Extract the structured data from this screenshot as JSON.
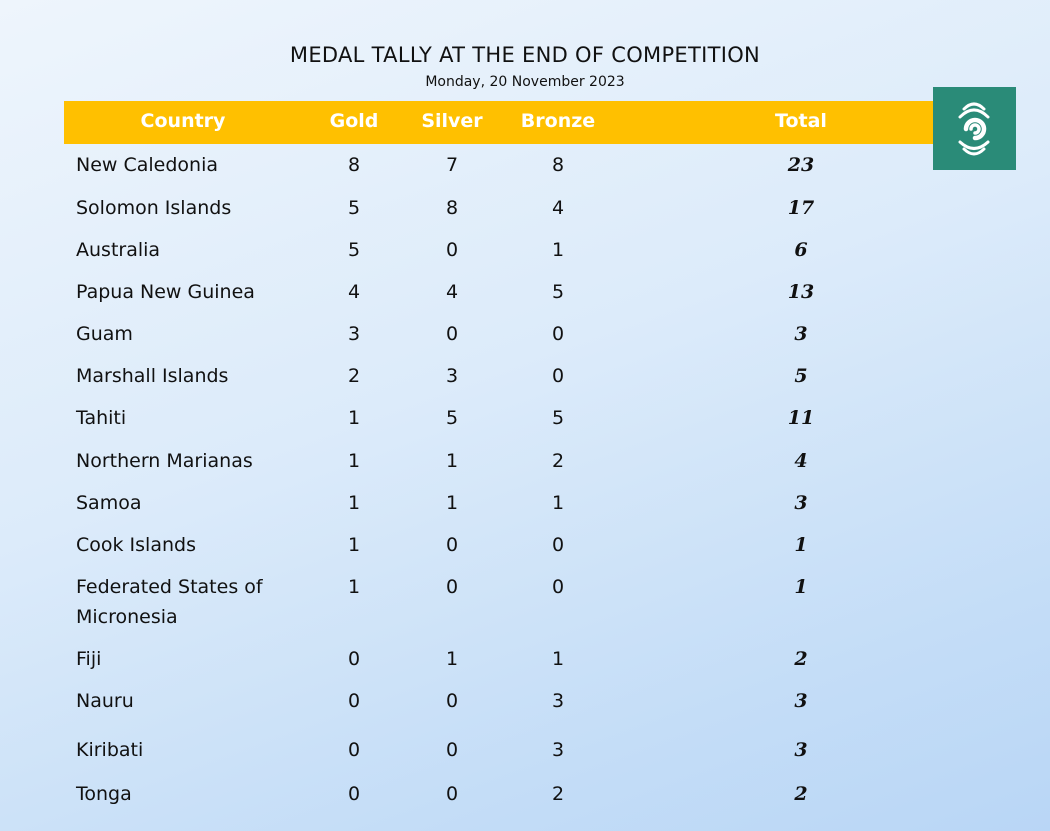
{
  "title": "MEDAL TALLY AT THE END OF COMPETITION",
  "subtitle": "Monday, 20 November 2023",
  "header": {
    "country": "Country",
    "gold": "Gold",
    "silver": "Silver",
    "bronze": "Bronze",
    "total": "Total"
  },
  "logo": {
    "icon": "rnz-swirl-icon",
    "color": "#2a8b78"
  },
  "colors": {
    "header": "#ffc000",
    "header_text": "#ffffff"
  },
  "rows": [
    {
      "country": "New Caledonia",
      "gold": "8",
      "silver": "7",
      "bronze": "8",
      "total": "23"
    },
    {
      "country": "Solomon Islands",
      "gold": "5",
      "silver": "8",
      "bronze": "4",
      "total": "17"
    },
    {
      "country": "Australia",
      "gold": "5",
      "silver": "0",
      "bronze": "1",
      "total": "6"
    },
    {
      "country": "Papua New Guinea",
      "gold": "4",
      "silver": "4",
      "bronze": "5",
      "total": "13"
    },
    {
      "country": "Guam",
      "gold": "3",
      "silver": "0",
      "bronze": "0",
      "total": "3"
    },
    {
      "country": "Marshall Islands",
      "gold": "2",
      "silver": "3",
      "bronze": "0",
      "total": "5"
    },
    {
      "country": "Tahiti",
      "gold": "1",
      "silver": "5",
      "bronze": "5",
      "total": "11"
    },
    {
      "country": "Northern Marianas",
      "gold": "1",
      "silver": "1",
      "bronze": "2",
      "total": "4"
    },
    {
      "country": "Samoa",
      "gold": "1",
      "silver": "1",
      "bronze": "1",
      "total": "3"
    },
    {
      "country": "Cook Islands",
      "gold": "1",
      "silver": "0",
      "bronze": "0",
      "total": "1"
    },
    {
      "country": "Federated States of Micronesia",
      "gold": "1",
      "silver": "0",
      "bronze": "0",
      "total": "1"
    },
    {
      "country": "Fiji",
      "gold": "0",
      "silver": "1",
      "bronze": "1",
      "total": "2"
    },
    {
      "country": "Nauru",
      "gold": "0",
      "silver": "0",
      "bronze": "3",
      "total": "3"
    },
    {
      "country": "Kiribati",
      "gold": "0",
      "silver": "0",
      "bronze": "3",
      "total": "3"
    },
    {
      "country": "Tonga",
      "gold": "0",
      "silver": "0",
      "bronze": "2",
      "total": "2"
    }
  ]
}
